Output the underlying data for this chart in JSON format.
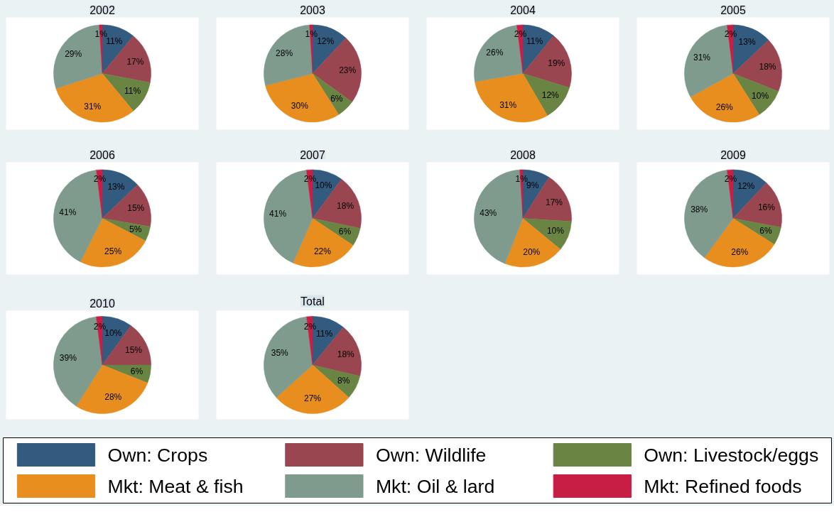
{
  "chart_data": [
    {
      "type": "pie",
      "title": "2002",
      "categories": [
        "Own: Crops",
        "Own: Wildlife",
        "Own: Livestock/eggs",
        "Mkt: Meat & fish",
        "Mkt: Oil & lard",
        "Mkt: Refined foods"
      ],
      "colors": [
        "#335a7f",
        "#9a4650",
        "#6a8443",
        "#e88e1e",
        "#7f9b8e",
        "#c81e46"
      ],
      "values": [
        11,
        17,
        11,
        31,
        29,
        1
      ],
      "value_labels": [
        "11%",
        "17%",
        "11%",
        "31%",
        "29%",
        "1%"
      ],
      "legend": "bottom"
    },
    {
      "type": "pie",
      "title": "2003",
      "colors": [
        "#335a7f",
        "#9a4650",
        "#6a8443",
        "#e88e1e",
        "#7f9b8e",
        "#c81e46"
      ],
      "values": [
        12,
        23,
        6,
        30,
        28,
        1
      ],
      "value_labels": [
        "12%",
        "23%",
        "6%",
        "30%",
        "28%",
        "1%"
      ]
    },
    {
      "type": "pie",
      "title": "2004",
      "colors": [
        "#335a7f",
        "#9a4650",
        "#6a8443",
        "#e88e1e",
        "#7f9b8e",
        "#c81e46"
      ],
      "values": [
        11,
        19,
        12,
        31,
        26,
        2
      ],
      "value_labels": [
        "11%",
        "19%",
        "12%",
        "31%",
        "26%",
        "2%"
      ]
    },
    {
      "type": "pie",
      "title": "2005",
      "colors": [
        "#335a7f",
        "#9a4650",
        "#6a8443",
        "#e88e1e",
        "#7f9b8e",
        "#c81e46"
      ],
      "values": [
        13,
        18,
        10,
        26,
        31,
        2
      ],
      "value_labels": [
        "13%",
        "18%",
        "10%",
        "26%",
        "31%",
        "2%"
      ]
    },
    {
      "type": "pie",
      "title": "2006",
      "colors": [
        "#335a7f",
        "#9a4650",
        "#6a8443",
        "#e88e1e",
        "#7f9b8e",
        "#c81e46"
      ],
      "values": [
        13,
        15,
        5,
        25,
        41,
        2
      ],
      "value_labels": [
        "13%",
        "15%",
        "5%",
        "25%",
        "41%",
        "2%"
      ]
    },
    {
      "type": "pie",
      "title": "2007",
      "colors": [
        "#335a7f",
        "#9a4650",
        "#6a8443",
        "#e88e1e",
        "#7f9b8e",
        "#c81e46"
      ],
      "values": [
        10,
        18,
        6,
        22,
        41,
        2
      ],
      "value_labels": [
        "10%",
        "18%",
        "6%",
        "22%",
        "41%",
        "2%"
      ]
    },
    {
      "type": "pie",
      "title": "2008",
      "colors": [
        "#335a7f",
        "#9a4650",
        "#6a8443",
        "#e88e1e",
        "#7f9b8e",
        "#c81e46"
      ],
      "values": [
        9,
        17,
        10,
        20,
        43,
        1
      ],
      "value_labels": [
        "9%",
        "17%",
        "10%",
        "20%",
        "43%",
        "1%"
      ]
    },
    {
      "type": "pie",
      "title": "2009",
      "colors": [
        "#335a7f",
        "#9a4650",
        "#6a8443",
        "#e88e1e",
        "#7f9b8e",
        "#c81e46"
      ],
      "values": [
        12,
        16,
        6,
        26,
        38,
        2
      ],
      "value_labels": [
        "12%",
        "16%",
        "6%",
        "26%",
        "38%",
        "2%"
      ]
    },
    {
      "type": "pie",
      "title": "2010",
      "colors": [
        "#335a7f",
        "#9a4650",
        "#6a8443",
        "#e88e1e",
        "#7f9b8e",
        "#c81e46"
      ],
      "values": [
        10,
        15,
        6,
        28,
        39,
        2
      ],
      "value_labels": [
        "10%",
        "15%",
        "6%",
        "28%",
        "39%",
        "2%"
      ]
    },
    {
      "type": "pie",
      "title": "Total",
      "colors": [
        "#335a7f",
        "#9a4650",
        "#6a8443",
        "#e88e1e",
        "#7f9b8e",
        "#c81e46"
      ],
      "values": [
        11,
        18,
        8,
        27,
        35,
        2
      ],
      "value_labels": [
        "11%",
        "18%",
        "8%",
        "27%",
        "35%",
        "2%"
      ]
    }
  ]
}
